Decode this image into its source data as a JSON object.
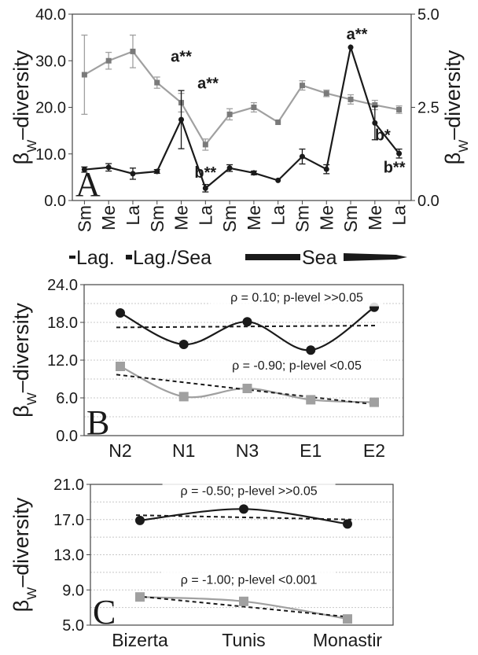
{
  "colors": {
    "dark_series": "#1a1a1a",
    "gray_series": "#a0a0a0",
    "grid": "#c8c8c8",
    "axis": "#444444"
  },
  "chart_data": [
    {
      "type": "line",
      "panel": "A",
      "ylabel": "β",
      "ylabel_sub": "W",
      "ylabel_tail": "–diversity",
      "ylabel_right": "β",
      "ylabel_right_sub": "W",
      "ylabel_right_tail": "–diversity",
      "ylim": [
        0,
        40
      ],
      "yticks": [
        "0.0",
        "10.0",
        "20.0",
        "30.0",
        "40.0"
      ],
      "ylim_right": [
        0,
        5
      ],
      "yticks_right": [
        "0.0",
        "2.5",
        "5.0"
      ],
      "categories": [
        "Sm",
        "Me",
        "La",
        "Sm",
        "Me",
        "La",
        "Sm",
        "Me",
        "La",
        "Sm",
        "Me",
        "Sm",
        "Me",
        "La"
      ],
      "region_labels": [
        "Lag.",
        "Lag./Sea",
        "Sea"
      ],
      "series": [
        {
          "axis": "left",
          "marker": "square",
          "values": [
            27.0,
            30.0,
            32.0,
            25.3,
            21.0,
            12.0,
            18.5,
            20.0,
            16.8,
            24.7,
            23.0,
            21.7,
            20.5,
            19.5
          ],
          "err": [
            8.5,
            1.8,
            3.5,
            1.2,
            2.0,
            1.2,
            1.2,
            1.0,
            0,
            1.0,
            0.7,
            1.0,
            1.0,
            0.8
          ]
        },
        {
          "axis": "right",
          "marker": "circle",
          "values": [
            0.83,
            0.89,
            0.72,
            0.78,
            2.17,
            0.33,
            0.87,
            0.74,
            0.54,
            1.18,
            0.84,
            4.11,
            2.08,
            1.26
          ],
          "err": [
            0.07,
            0.1,
            0.15,
            0.05,
            0.78,
            0.1,
            0.09,
            0.05,
            0,
            0.2,
            0.12,
            0,
            0.45,
            0.12
          ]
        }
      ],
      "annotations": [
        {
          "text": "a**",
          "series": 0,
          "index": 4,
          "dx": 0,
          "dy": -52
        },
        {
          "text": "a**",
          "series": 0,
          "index": 4,
          "dx": 34,
          "dy": -18
        },
        {
          "text": "b**",
          "series": 0,
          "index": 5,
          "dx": 0,
          "dy": 42
        },
        {
          "text": "a**",
          "series": 1,
          "index": 11,
          "dx": 8,
          "dy": -10
        },
        {
          "text": "b*",
          "series": 1,
          "index": 12,
          "dx": 10,
          "dy": 22
        },
        {
          "text": "b**",
          "series": 1,
          "index": 13,
          "dx": -6,
          "dy": 24
        }
      ]
    },
    {
      "type": "line",
      "panel": "B",
      "ylabel": "β",
      "ylabel_sub": "W",
      "ylabel_tail": "–diversity",
      "ylim": [
        0,
        24
      ],
      "yticks": [
        "0.0",
        "6.0",
        "12.0",
        "18.0",
        "24.0"
      ],
      "categories": [
        "N2",
        "N1",
        "N3",
        "E1",
        "E2"
      ],
      "series": [
        {
          "marker": "circle",
          "values": [
            19.5,
            14.5,
            18.1,
            13.6,
            20.4
          ],
          "trend": [
            17.2,
            17.5
          ]
        },
        {
          "marker": "square",
          "values": [
            11.0,
            6.2,
            7.5,
            5.7,
            5.3
          ],
          "trend": [
            9.7,
            4.9
          ]
        }
      ],
      "annotations": [
        {
          "text": "ρ = 0.10; p-level >>0.05",
          "y": 21.3,
          "x": 2.78
        },
        {
          "text": "ρ = -0.90; p-level <0.05",
          "y": 10.5,
          "x": 2.78
        }
      ]
    },
    {
      "type": "line",
      "panel": "C",
      "ylabel": "β",
      "ylabel_sub": "W",
      "ylabel_tail": "–diversity",
      "ylim": [
        5,
        21
      ],
      "yticks": [
        "5.0",
        "9.0",
        "13.0",
        "17.0",
        "21.0"
      ],
      "categories": [
        "Bizerta",
        "Tunis",
        "Monastir"
      ],
      "series": [
        {
          "marker": "circle",
          "values": [
            16.9,
            18.2,
            16.5
          ],
          "trend": [
            17.5,
            17.0
          ]
        },
        {
          "marker": "square",
          "values": [
            8.2,
            7.7,
            5.7
          ],
          "trend": [
            8.3,
            5.9
          ]
        }
      ],
      "annotations": [
        {
          "text": "ρ = -0.50; p-level >>0.05",
          "y": 19.8,
          "x": 1.05
        },
        {
          "text": "ρ = -1.00; p-level <0.001",
          "y": 9.7,
          "x": 1.05
        }
      ]
    }
  ]
}
